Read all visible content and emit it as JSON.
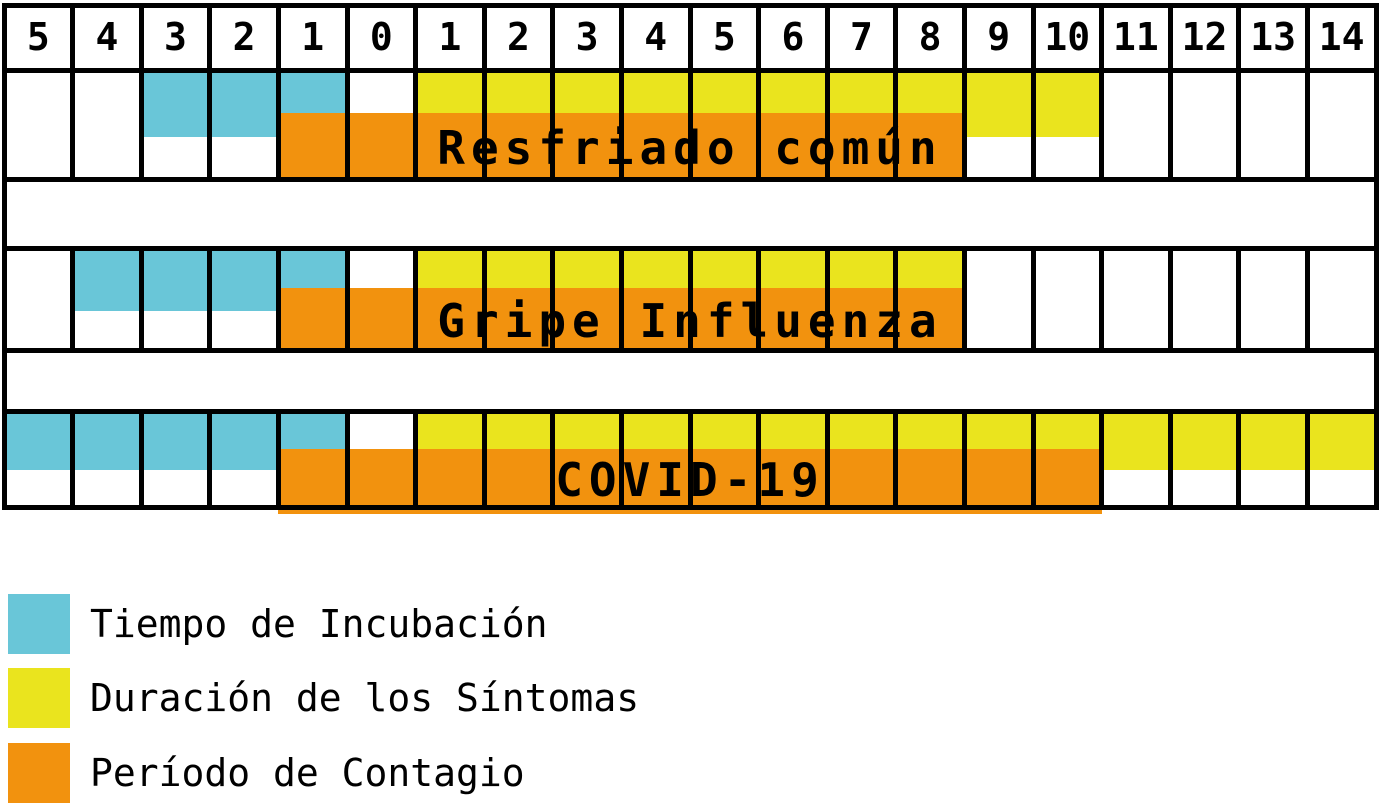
{
  "chart_data": {
    "type": "heatmap",
    "x_labels": [
      "5",
      "4",
      "3",
      "2",
      "1",
      "0",
      "1",
      "2",
      "3",
      "4",
      "5",
      "6",
      "7",
      "8",
      "9",
      "10",
      "11",
      "12",
      "13",
      "14"
    ],
    "x_range_days": [
      -5,
      14
    ],
    "rows": [
      {
        "name": "Resfriado común",
        "incubation_days": [
          -3,
          -1
        ],
        "symptom_days": [
          1,
          10
        ],
        "contagion_days": [
          -1,
          8
        ]
      },
      {
        "name": "Gripe Influenza",
        "incubation_days": [
          -4,
          -1
        ],
        "symptom_days": [
          1,
          8
        ],
        "contagion_days": [
          -1,
          8
        ]
      },
      {
        "name": "COVID-19",
        "incubation_days": [
          -5,
          -1
        ],
        "symptom_days": [
          1,
          14
        ],
        "contagion_days": [
          -1,
          10
        ]
      }
    ],
    "legend": [
      {
        "key": "incubation",
        "label": "Tiempo de Incubación",
        "color": "#69C6D8"
      },
      {
        "key": "symptoms",
        "label": "Duración de los Síntomas",
        "color": "#EAE41E"
      },
      {
        "key": "contagion",
        "label": "Período de Contagio",
        "color": "#F2920E"
      }
    ],
    "colors": {
      "incubation": "#69C6D8",
      "symptoms": "#EAE41E",
      "contagion": "#F2920E",
      "grid_line": "#000000",
      "text": "#000000",
      "background": "#FFFFFF"
    }
  }
}
